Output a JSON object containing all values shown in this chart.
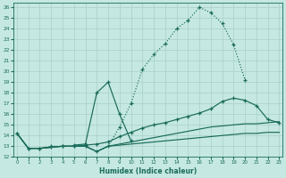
{
  "xlabel": "Humidex (Indice chaleur)",
  "bg_color": "#c5e8e2",
  "grid_color": "#a8cfc8",
  "line_color": "#1a6b5a",
  "ylim": [
    12,
    26.4
  ],
  "xlim": [
    -0.3,
    23.3
  ],
  "yticks": [
    12,
    13,
    14,
    15,
    16,
    17,
    18,
    19,
    20,
    21,
    22,
    23,
    24,
    25,
    26
  ],
  "xticks": [
    0,
    1,
    2,
    3,
    4,
    5,
    6,
    7,
    8,
    9,
    10,
    11,
    12,
    13,
    14,
    15,
    16,
    17,
    18,
    19,
    20,
    21,
    22,
    23
  ],
  "c1_x": [
    0,
    1,
    2,
    3,
    4,
    5,
    6,
    7,
    8,
    9,
    10,
    11,
    12,
    13,
    14,
    15,
    16,
    17,
    18,
    19,
    20
  ],
  "c1_y": [
    14.2,
    12.8,
    12.8,
    13.0,
    13.0,
    13.0,
    13.0,
    12.5,
    13.0,
    14.8,
    17.0,
    20.2,
    21.6,
    22.6,
    24.0,
    24.8,
    26.0,
    25.5,
    24.5,
    22.5,
    19.2
  ],
  "c2_x": [
    0,
    1,
    2,
    3,
    4,
    5,
    6,
    7,
    8,
    9,
    10,
    11,
    12,
    13,
    14,
    15,
    16,
    17,
    18,
    19,
    20,
    21,
    22,
    23
  ],
  "c2_y": [
    14.2,
    12.8,
    12.8,
    12.9,
    13.0,
    13.0,
    13.1,
    13.2,
    13.4,
    13.9,
    14.3,
    14.7,
    15.0,
    15.2,
    15.5,
    15.8,
    16.1,
    16.5,
    17.2,
    17.5,
    17.3,
    16.8,
    15.5,
    15.2
  ],
  "c3_x": [
    0,
    1,
    2,
    3,
    4,
    5,
    6,
    7,
    8,
    9,
    10,
    11,
    12,
    13,
    14,
    15,
    16,
    17,
    18,
    19,
    20,
    21,
    22,
    23
  ],
  "c3_y": [
    14.2,
    12.8,
    12.8,
    12.9,
    13.0,
    13.0,
    13.0,
    12.5,
    13.0,
    13.2,
    13.4,
    13.6,
    13.8,
    14.0,
    14.2,
    14.4,
    14.6,
    14.8,
    14.9,
    15.0,
    15.1,
    15.1,
    15.2,
    15.3
  ],
  "c4_x": [
    0,
    1,
    2,
    3,
    4,
    5,
    6,
    7,
    8,
    9,
    10,
    11,
    12,
    13,
    14,
    15,
    16,
    17,
    18,
    19,
    20,
    21,
    22,
    23
  ],
  "c4_y": [
    14.2,
    12.8,
    12.8,
    12.9,
    13.0,
    13.0,
    13.0,
    12.5,
    13.0,
    13.1,
    13.2,
    13.3,
    13.4,
    13.5,
    13.6,
    13.7,
    13.8,
    13.9,
    14.0,
    14.1,
    14.2,
    14.2,
    14.3,
    14.3
  ],
  "c5_x": [
    5,
    6,
    7,
    8,
    9,
    10
  ],
  "c5_y": [
    13.1,
    13.2,
    18.0,
    19.0,
    16.0,
    13.5
  ]
}
